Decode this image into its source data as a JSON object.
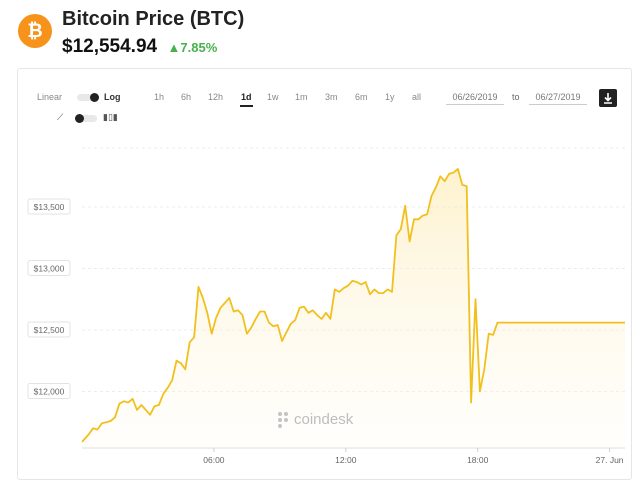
{
  "header": {
    "title": "Bitcoin Price (BTC)",
    "price": "$12,554.94",
    "change": "7.85%",
    "change_direction": "up",
    "logo_icon": "bitcoin-icon",
    "logo_color": "#f7931a",
    "change_color": "#48b14c"
  },
  "controls": {
    "scale_linear": "Linear",
    "scale_log": "Log",
    "ranges": [
      "1h",
      "6h",
      "12h",
      "1d",
      "1w",
      "1m",
      "3m",
      "6m",
      "1y",
      "all"
    ],
    "active_range": "1d",
    "date_from": "06/26/2019",
    "date_to_label": "to",
    "date_to": "06/27/2019",
    "download_icon": "download-icon",
    "line_icon": "line-chart-icon",
    "bar_icon": "candlestick-icon"
  },
  "watermark": "coindesk",
  "chart_data": {
    "type": "area",
    "title": "",
    "xlabel": "",
    "ylabel": "",
    "line_color": "#f2c01e",
    "ytick_labels": [
      "$13,500",
      "$13,000",
      "$12,500",
      "$12,000"
    ],
    "yticks": [
      13500,
      13000,
      12500,
      12000
    ],
    "xtick_labels": [
      "06:00",
      "12:00",
      "18:00",
      "27. Jun"
    ],
    "xticks_hours": [
      6,
      12,
      18,
      24
    ],
    "ylim": [
      11540,
      13980
    ],
    "xlim_hours": [
      0,
      24.7
    ],
    "grid": true,
    "series": [
      {
        "x_hours": [
          0,
          0.3,
          0.5,
          0.7,
          0.9,
          1.1,
          1.3,
          1.5,
          1.7,
          1.9,
          2.1,
          2.3,
          2.5,
          2.7,
          2.9,
          3.1,
          3.3,
          3.5,
          3.7,
          3.9,
          4.1,
          4.3,
          4.5,
          4.7,
          4.9,
          5.1,
          5.3,
          5.5,
          5.7,
          5.9,
          6.1,
          6.3,
          6.5,
          6.7,
          6.9,
          7.1,
          7.3,
          7.5,
          7.7,
          7.9,
          8.1,
          8.3,
          8.5,
          8.7,
          8.9,
          9.1,
          9.3,
          9.5,
          9.7,
          9.9,
          10.1,
          10.3,
          10.5,
          10.7,
          10.9,
          11.1,
          11.3,
          11.5,
          11.7,
          11.9,
          12.1,
          12.3,
          12.5,
          12.7,
          12.9,
          13.1,
          13.3,
          13.5,
          13.7,
          13.9,
          14.1,
          14.3,
          14.5,
          14.7,
          14.9,
          15.1,
          15.3,
          15.5,
          15.7,
          15.9,
          16.1,
          16.3,
          16.5,
          16.7,
          16.9,
          17.1,
          17.3,
          17.5,
          17.7,
          17.9,
          18.1,
          18.3,
          18.5,
          18.7,
          18.9,
          19.1,
          19.3,
          19.5,
          19.7,
          19.9,
          20.1,
          20.3,
          20.5,
          20.7,
          20.9,
          21.1,
          21.3,
          21.5,
          21.7,
          21.9,
          22.1,
          22.3,
          22.5,
          22.7,
          22.9,
          23.1,
          23.3,
          23.5,
          23.7,
          23.9,
          24.1,
          24.3,
          24.5,
          24.7
        ],
        "values": [
          11590,
          11650,
          11700,
          11690,
          11740,
          11750,
          11760,
          11790,
          11900,
          11920,
          11910,
          11940,
          11850,
          11890,
          11850,
          11810,
          11880,
          11890,
          11980,
          12030,
          12090,
          12250,
          12230,
          12180,
          12400,
          12440,
          12850,
          12760,
          12640,
          12470,
          12600,
          12680,
          12720,
          12760,
          12650,
          12660,
          12620,
          12470,
          12520,
          12590,
          12650,
          12650,
          12560,
          12530,
          12540,
          12410,
          12480,
          12550,
          12580,
          12680,
          12690,
          12640,
          12660,
          12620,
          12590,
          12640,
          12590,
          12830,
          12810,
          12840,
          12860,
          12900,
          12890,
          12870,
          12890,
          12790,
          12830,
          12800,
          12800,
          12830,
          12810,
          13270,
          13320,
          13510,
          13220,
          13400,
          13400,
          13430,
          13440,
          13590,
          13660,
          13750,
          13710,
          13770,
          13780,
          13810,
          13680,
          13670,
          11910,
          12750,
          12000,
          12180,
          12470,
          12460,
          12560,
          12560,
          12560,
          12560,
          12560,
          12560,
          12560,
          12560,
          12560,
          12560,
          12560,
          12560,
          12560,
          12560,
          12560,
          12560,
          12560,
          12560,
          12560,
          12560,
          12560,
          12560,
          12560,
          12560,
          12560,
          12560,
          12560,
          12560,
          12560,
          12560
        ]
      }
    ]
  }
}
